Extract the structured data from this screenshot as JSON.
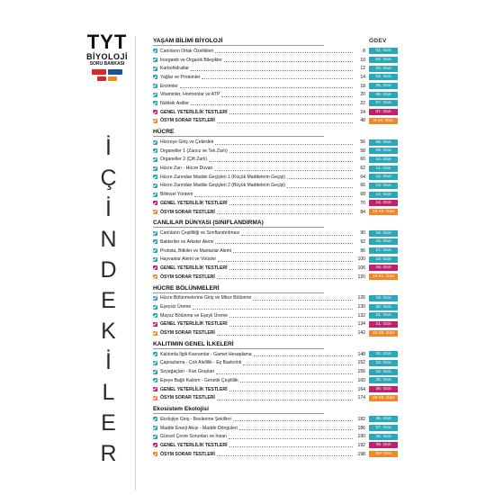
{
  "brand": {
    "title": "TYT",
    "subject": "BİYOLOJİ",
    "kind": "SORU BANKASI",
    "logo_colors": [
      "#e2232a",
      "#1c4fa1",
      "#e2232a",
      "#f28a1a"
    ]
  },
  "vertical_title": "İÇİNDEKİLER",
  "column_header": "ÖDEV",
  "colors": {
    "check_teal": "#2aa7b8",
    "check_magenta": "#c1206d",
    "check_orange": "#f0882a",
    "day_teal": "#2aa7b8",
    "day_magenta": "#c1206d",
    "day_orange": "#f0882a"
  },
  "sections": [
    {
      "title": "YAŞAM BİLİMİ BİYOLOJİ",
      "items": [
        {
          "title": "Canlıların Ortak Özellikleri",
          "page": "8",
          "day": "01. Gün",
          "type": "normal"
        },
        {
          "title": "İnorganik ve Organik Bileşikler",
          "page": "10",
          "day": "02. Gün",
          "type": "normal"
        },
        {
          "title": "Karbohidratlar",
          "page": "12",
          "day": "03. Gün",
          "type": "normal"
        },
        {
          "title": "Yağlar ve Proteinler",
          "page": "14",
          "day": "04. Gün",
          "type": "normal"
        },
        {
          "title": "Enzimler",
          "page": "18",
          "day": "05. Gün",
          "type": "normal"
        },
        {
          "title": "Vitaminler, Hormonlar ve ATP",
          "page": "20",
          "day": "06. Gün",
          "type": "normal"
        },
        {
          "title": "Nükleik Asitler",
          "page": "22",
          "day": "07. Gün",
          "type": "normal"
        },
        {
          "title": "GENEL YETERLİLİK TESTLERİ",
          "page": "24",
          "day": "07. Gün",
          "type": "genel"
        },
        {
          "title": "ÖSYM SORAR TESTLERİ",
          "page": "48",
          "day": "8-14. Gün",
          "type": "osym"
        }
      ]
    },
    {
      "title": "HÜCRE",
      "items": [
        {
          "title": "Hücreye Giriş ve Çekirdek",
          "page": "56",
          "day": "08. Gün",
          "type": "normal"
        },
        {
          "title": "Organeller 1 (Zarsız ve Tek Zarlı)",
          "page": "58",
          "day": "09. Gün",
          "type": "normal"
        },
        {
          "title": "Organeller 2 (Çift Zarlı)",
          "page": "60",
          "day": "10. Gün",
          "type": "normal"
        },
        {
          "title": "Hücre Zarı - Hücre Duvarı",
          "page": "62",
          "day": "11. Gün",
          "type": "normal"
        },
        {
          "title": "Hücre Zarından Madde Geçişleri 1 (Küçük Maddelerin Geçişi)",
          "page": "64",
          "day": "12. Gün",
          "type": "normal"
        },
        {
          "title": "Hücre Zarından Madde Geçişleri 2 (Büyük Maddelerin Geçişi)",
          "page": "66",
          "day": "13. Gün",
          "type": "normal"
        },
        {
          "title": "Bilimsel Yöntem",
          "page": "68",
          "day": "14. Gün",
          "type": "normal"
        },
        {
          "title": "GENEL YETERLİLİK TESTLERİ",
          "page": "70",
          "day": "14. Gün",
          "type": "genel"
        },
        {
          "title": "ÖSYM SORAR TESTLERİ",
          "page": "84",
          "day": "15-18. Gün",
          "type": "osym"
        }
      ]
    },
    {
      "title": "CANLILAR DÜNYASI (SINIFLANDIRMA)",
      "items": [
        {
          "title": "Canlıların Çeşitliliği ve Sınıflandırılması",
          "page": "90",
          "day": "15. Gün",
          "type": "normal"
        },
        {
          "title": "Bakteriler ve Arkeler Alemi",
          "page": "92",
          "day": "16. Gün",
          "type": "normal"
        },
        {
          "title": "Protista, Bitkiler ve Mantarlar Alemi",
          "page": "96",
          "day": "17. Gün",
          "type": "normal"
        },
        {
          "title": "Hayvanlar Alemi ve Virüsler",
          "page": "100",
          "day": "18. Gün",
          "type": "normal"
        },
        {
          "title": "GENEL YETERLİLİK TESTLERİ",
          "page": "106",
          "day": "18. Gün",
          "type": "genel"
        },
        {
          "title": "ÖSYM SORAR TESTLERİ",
          "page": "120",
          "day": "19-21. Gün",
          "type": "osym"
        }
      ]
    },
    {
      "title": "HÜCRE BÖLÜNMELERİ",
      "items": [
        {
          "title": "Hücre Bölünmelerine Giriş ve Mitoz Bölünme",
          "page": "126",
          "day": "19. Gün",
          "type": "normal"
        },
        {
          "title": "Eşeysiz Üreme",
          "page": "130",
          "day": "20. Gün",
          "type": "normal"
        },
        {
          "title": "Mayoz Bölünme ve Eşeyli Üreme",
          "page": "132",
          "day": "21. Gün",
          "type": "normal"
        },
        {
          "title": "GENEL YETERLİLİK TESTLERİ",
          "page": "134",
          "day": "21. Gün",
          "type": "genel"
        },
        {
          "title": "ÖSYM SORAR TESTLERİ",
          "page": "142",
          "day": "22-25. Gün",
          "type": "osym"
        }
      ]
    },
    {
      "title": "KALITIMIN GENEL İLKELERİ",
      "items": [
        {
          "title": "Kalıtımla İlgili Kavramlar - Gamet Hesaplama",
          "page": "148",
          "day": "22. Gün",
          "type": "normal"
        },
        {
          "title": "Çaprazlama - Çok Alellilik - Eş Baskınlık",
          "page": "152",
          "day": "23. Gün",
          "type": "normal"
        },
        {
          "title": "Soyağaçları - Kan Grupları",
          "page": "156",
          "day": "24. Gün",
          "type": "normal"
        },
        {
          "title": "Eşeye Bağlı Kalıtım - Genetik Çeşitlilik",
          "page": "160",
          "day": "25. Gün",
          "type": "normal"
        },
        {
          "title": "GENEL YETERLİLİK TESTLERİ",
          "page": "164",
          "day": "25. Gün",
          "type": "genel"
        },
        {
          "title": "ÖSYM SORAR TESTLERİ",
          "page": "174",
          "day": "26-28. Gün",
          "type": "osym"
        }
      ]
    },
    {
      "title": "Ekosistem Ekolojisi",
      "items": [
        {
          "title": "Ekolojiye Giriş - Beslenme Şekilleri",
          "page": "182",
          "day": "26. Gün",
          "type": "normal"
        },
        {
          "title": "Madde Enerji Akışı - Madde Döngüleri",
          "page": "186",
          "day": "27. Gün",
          "type": "normal"
        },
        {
          "title": "Güncel Çevre Sorunları ve İnsan",
          "page": "190",
          "day": "28. Gün",
          "type": "normal"
        },
        {
          "title": "GENEL YETERLİLİK TESTLERİ",
          "page": "192",
          "day": "28. Gün",
          "type": "genel"
        },
        {
          "title": "ÖSYM SORAR TESTLERİ",
          "page": "198",
          "day": "28+ Gün",
          "type": "osym"
        }
      ]
    }
  ]
}
